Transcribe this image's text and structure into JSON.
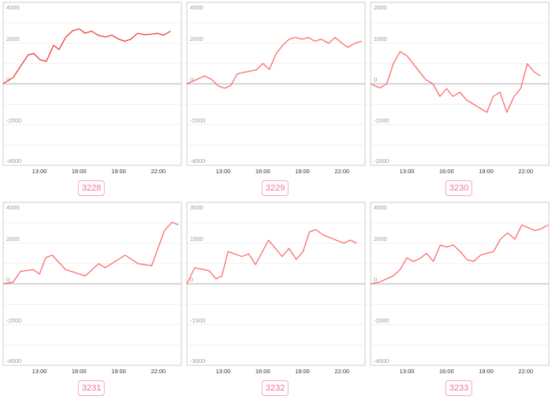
{
  "colors": {
    "line_first": "#f23a3a",
    "line": "#ff6b6b",
    "tag": "#f0709a",
    "tag_border": "#f7a8bd",
    "grid": "#f0f0f0",
    "zero": "#c8c8c8",
    "frame": "#dedede"
  },
  "chart_data": [
    {
      "type": "line",
      "id": "3228",
      "tag": "3228",
      "ylim": [
        -4000,
        4000
      ],
      "yticks": [
        "4000",
        "2000",
        "0",
        "-2000",
        "-4000"
      ],
      "xticks": [
        "13:00",
        "16:00",
        "19:00",
        "22:00"
      ],
      "xlim": [
        "10:15",
        "23:45"
      ],
      "grid": true,
      "x": [
        "10:14",
        "11:00",
        "12:08",
        "12:34",
        "13:02",
        "13:31",
        "14:04",
        "14:29",
        "15:00",
        "15:31",
        "16:01",
        "16:28",
        "16:56",
        "17:28",
        "18:00",
        "18:29",
        "18:59",
        "19:28",
        "19:56",
        "20:26",
        "20:58",
        "21:28",
        "21:56",
        "22:24",
        "22:56"
      ],
      "values": [
        0,
        310,
        1410,
        1490,
        1190,
        1100,
        1890,
        1690,
        2300,
        2610,
        2700,
        2480,
        2590,
        2380,
        2300,
        2390,
        2200,
        2090,
        2190,
        2480,
        2410,
        2440,
        2480,
        2390,
        2590
      ]
    },
    {
      "type": "line",
      "id": "3229",
      "tag": "3229",
      "ylim": [
        -4000,
        4000
      ],
      "yticks": [
        "4000",
        "2000",
        "0",
        "-2000",
        "-4000"
      ],
      "xticks": [
        "13:00",
        "16:00",
        "19:00",
        "22:00"
      ],
      "xlim": [
        "10:15",
        "23:45"
      ],
      "grid": true,
      "x": [
        "10:14",
        "11:00",
        "11:36",
        "12:08",
        "12:36",
        "13:06",
        "13:34",
        "14:04",
        "15:31",
        "16:01",
        "16:30",
        "17:00",
        "17:30",
        "18:00",
        "18:29",
        "18:59",
        "19:28",
        "19:56",
        "20:26",
        "20:59",
        "21:29",
        "21:58",
        "22:26",
        "22:58",
        "23:28"
      ],
      "values": [
        0,
        215,
        385,
        215,
        -90,
        -215,
        -90,
        490,
        690,
        1000,
        705,
        1470,
        1890,
        2190,
        2280,
        2190,
        2280,
        2090,
        2190,
        1990,
        2280,
        2010,
        1790,
        1990,
        2090
      ]
    },
    {
      "type": "line",
      "id": "3230",
      "tag": "3230",
      "ylim": [
        -2000,
        2000
      ],
      "yticks": [
        "2000",
        "1000",
        "0",
        "-1000",
        "-2000"
      ],
      "xticks": [
        "13:00",
        "16:00",
        "19:00",
        "22:00"
      ],
      "xlim": [
        "10:15",
        "23:45"
      ],
      "grid": true,
      "x": [
        "10:15",
        "10:57",
        "11:28",
        "11:58",
        "12:29",
        "13:00",
        "14:26",
        "14:58",
        "15:30",
        "16:00",
        "16:29",
        "17:01",
        "17:31",
        "19:03",
        "19:32",
        "20:03",
        "20:34",
        "21:07",
        "21:37",
        "22:07",
        "22:37",
        "23:06"
      ],
      "values": [
        0,
        -100,
        0,
        490,
        790,
        690,
        100,
        0,
        -310,
        -115,
        -310,
        -205,
        -395,
        -700,
        -310,
        -205,
        -700,
        -310,
        -115,
        495,
        300,
        200
      ]
    },
    {
      "type": "line",
      "id": "3231",
      "tag": "3231",
      "ylim": [
        -4000,
        4000
      ],
      "yticks": [
        "4000",
        "2000",
        "0",
        "-2000",
        "-4000"
      ],
      "xticks": [
        "13:00",
        "16:00",
        "19:00",
        "22:00"
      ],
      "xlim": [
        "10:15",
        "23:45"
      ],
      "grid": true,
      "x": [
        "10:15",
        "11:00",
        "11:34",
        "12:32",
        "13:00",
        "13:29",
        "13:58",
        "14:59",
        "16:28",
        "17:29",
        "17:59",
        "19:29",
        "20:29",
        "21:30",
        "22:28",
        "23:02",
        "23:32"
      ],
      "values": [
        0,
        90,
        610,
        700,
        480,
        1290,
        1410,
        700,
        390,
        990,
        790,
        1410,
        990,
        890,
        2610,
        3020,
        2900
      ]
    },
    {
      "type": "line",
      "id": "3232",
      "tag": "3232",
      "ylim": [
        -3000,
        3000
      ],
      "yticks": [
        "3000",
        "1500",
        "0",
        "-1500",
        "-3000"
      ],
      "xticks": [
        "13:00",
        "16:00",
        "19:00",
        "22:00"
      ],
      "xlim": [
        "10:15",
        "23:45"
      ],
      "grid": true,
      "x": [
        "10:15",
        "10:50",
        "11:56",
        "12:27",
        "12:54",
        "13:22",
        "14:24",
        "14:56",
        "15:27",
        "16:26",
        "17:28",
        "17:59",
        "18:32",
        "19:03",
        "19:32",
        "20:01",
        "20:34",
        "22:08",
        "22:38",
        "23:07"
      ],
      "values": [
        0,
        590,
        485,
        185,
        290,
        1190,
        1010,
        1100,
        710,
        1610,
        1010,
        1300,
        900,
        1190,
        1910,
        2000,
        1800,
        1500,
        1610,
        1500
      ]
    },
    {
      "type": "line",
      "id": "3233",
      "tag": "3233",
      "ylim": [
        -4000,
        4000
      ],
      "yticks": [
        "4000",
        "2000",
        "0",
        "-2000",
        "-4000"
      ],
      "xticks": [
        "13:00",
        "16:00",
        "19:00",
        "22:00"
      ],
      "xlim": [
        "10:15",
        "23:45"
      ],
      "grid": true,
      "x": [
        "10:15",
        "10:56",
        "11:58",
        "12:29",
        "13:00",
        "13:29",
        "14:00",
        "14:29",
        "15:00",
        "15:32",
        "16:01",
        "16:31",
        "17:02",
        "17:33",
        "18:03",
        "18:35",
        "19:34",
        "20:05",
        "20:37",
        "21:11",
        "21:42",
        "22:40",
        "23:11",
        "23:42"
      ],
      "values": [
        0,
        90,
        390,
        700,
        1280,
        1100,
        1250,
        1500,
        1100,
        1900,
        1810,
        1900,
        1590,
        1190,
        1100,
        1410,
        1590,
        2190,
        2500,
        2200,
        2890,
        2620,
        2700,
        2900
      ]
    }
  ]
}
